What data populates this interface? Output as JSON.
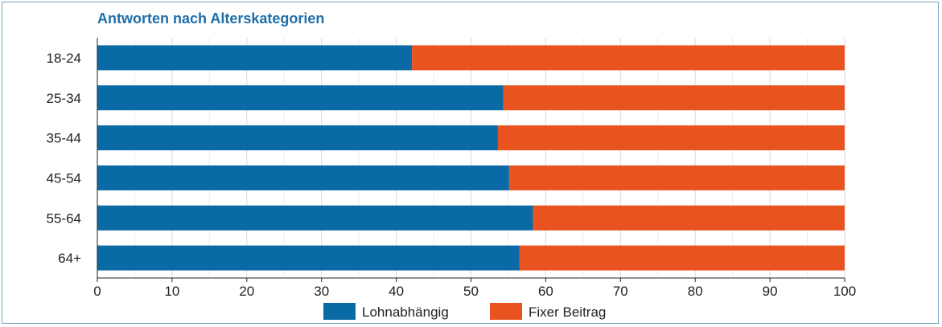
{
  "chart_data": {
    "type": "bar",
    "orientation": "horizontal",
    "stacked": true,
    "title": "Antworten nach Alterskategorien",
    "categories": [
      "18-24",
      "25-34",
      "35-44",
      "45-54",
      "55-64",
      "64+"
    ],
    "series": [
      {
        "name": "Lohnabhängig",
        "color": "#0a6aa6",
        "values": [
          42.1,
          54.3,
          53.6,
          55.1,
          58.3,
          56.5
        ]
      },
      {
        "name": "Fixer Beitrag",
        "color": "#e8531f",
        "values": [
          57.9,
          45.7,
          46.4,
          44.9,
          41.7,
          43.5
        ]
      }
    ],
    "xlim": [
      0,
      100
    ],
    "xticks": [
      "0",
      "10",
      "20",
      "30",
      "40",
      "50",
      "60",
      "70",
      "80",
      "90",
      "100"
    ],
    "grid": true,
    "legend": "bottom"
  }
}
